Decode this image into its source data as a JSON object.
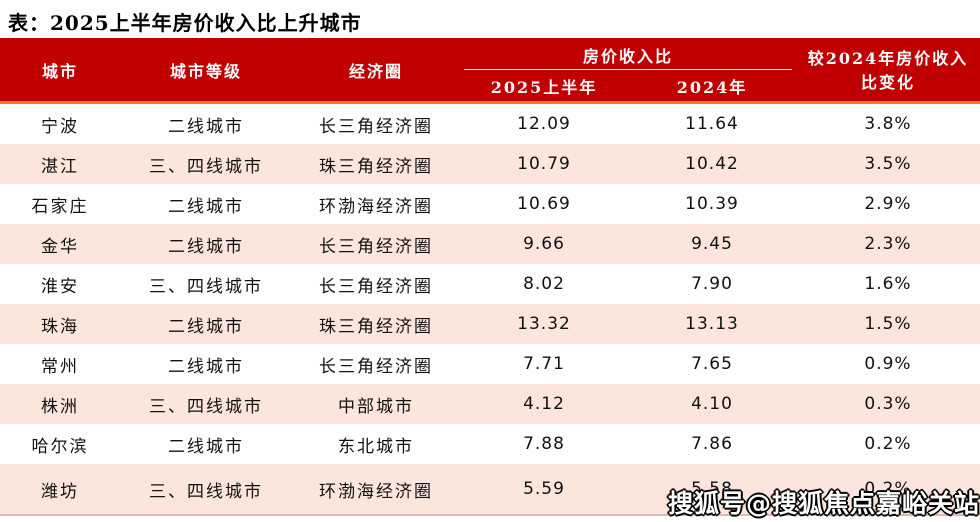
{
  "title": "表：2025上半年房价收入比上升城市",
  "table": {
    "headers": {
      "city": "城市",
      "tier": "城市等级",
      "region": "经济圈",
      "ratio_group": "房价收入比",
      "ratio_2025h1": "2025上半年",
      "ratio_2024": "2024年",
      "change": "较2024年房价收入\n比变化"
    },
    "rows": [
      {
        "city": "宁波",
        "tier": "二线城市",
        "region": "长三角经济圈",
        "h1_2025": "12.09",
        "y_2024": "11.64",
        "change": "3.8%"
      },
      {
        "city": "湛江",
        "tier": "三、四线城市",
        "region": "珠三角经济圈",
        "h1_2025": "10.79",
        "y_2024": "10.42",
        "change": "3.5%"
      },
      {
        "city": "石家庄",
        "tier": "二线城市",
        "region": "环渤海经济圈",
        "h1_2025": "10.69",
        "y_2024": "10.39",
        "change": "2.9%"
      },
      {
        "city": "金华",
        "tier": "二线城市",
        "region": "长三角经济圈",
        "h1_2025": "9.66",
        "y_2024": "9.45",
        "change": "2.3%"
      },
      {
        "city": "淮安",
        "tier": "三、四线城市",
        "region": "长三角经济圈",
        "h1_2025": "8.02",
        "y_2024": "7.90",
        "change": "1.6%"
      },
      {
        "city": "珠海",
        "tier": "二线城市",
        "region": "珠三角经济圈",
        "h1_2025": "13.32",
        "y_2024": "13.13",
        "change": "1.5%"
      },
      {
        "city": "常州",
        "tier": "二线城市",
        "region": "长三角经济圈",
        "h1_2025": "7.71",
        "y_2024": "7.65",
        "change": "0.9%"
      },
      {
        "city": "株洲",
        "tier": "三、四线城市",
        "region": "中部城市",
        "h1_2025": "4.12",
        "y_2024": "4.10",
        "change": "0.3%"
      },
      {
        "city": "哈尔滨",
        "tier": "二线城市",
        "region": "东北城市",
        "h1_2025": "7.88",
        "y_2024": "7.86",
        "change": "0.2%"
      },
      {
        "city": "潍坊",
        "tier": "三、四线城市",
        "region": "环渤海经济圈",
        "h1_2025": "5.59",
        "y_2024": "5.58",
        "change": "0.2%"
      }
    ]
  },
  "chart_data": {
    "type": "table",
    "title": "表：2025上半年房价收入比上升城市",
    "columns": [
      "城市",
      "城市等级",
      "经济圈",
      "房价收入比 2025上半年",
      "房价收入比 2024年",
      "较2024年房价收入比变化"
    ],
    "rows": [
      [
        "宁波",
        "二线城市",
        "长三角经济圈",
        12.09,
        11.64,
        "3.8%"
      ],
      [
        "湛江",
        "三、四线城市",
        "珠三角经济圈",
        10.79,
        10.42,
        "3.5%"
      ],
      [
        "石家庄",
        "二线城市",
        "环渤海经济圈",
        10.69,
        10.39,
        "2.9%"
      ],
      [
        "金华",
        "二线城市",
        "长三角经济圈",
        9.66,
        9.45,
        "2.3%"
      ],
      [
        "淮安",
        "三、四线城市",
        "长三角经济圈",
        8.02,
        7.9,
        "1.6%"
      ],
      [
        "珠海",
        "二线城市",
        "珠三角经济圈",
        13.32,
        13.13,
        "1.5%"
      ],
      [
        "常州",
        "二线城市",
        "长三角经济圈",
        7.71,
        7.65,
        "0.9%"
      ],
      [
        "株洲",
        "三、四线城市",
        "中部城市",
        4.12,
        4.1,
        "0.3%"
      ],
      [
        "哈尔滨",
        "二线城市",
        "东北城市",
        7.88,
        7.86,
        "0.2%"
      ],
      [
        "潍坊",
        "三、四线城市",
        "环渤海经济圈",
        5.59,
        5.58,
        "0.2%"
      ]
    ]
  },
  "watermark": "搜狐号@搜狐焦点嘉峪关站",
  "colors": {
    "header_red": "#C00000",
    "accent_orange": "#E87D2E",
    "row_pink": "#FBE5DD",
    "watermark_fill": "#FFFFFF",
    "watermark_outline": "#000000"
  }
}
